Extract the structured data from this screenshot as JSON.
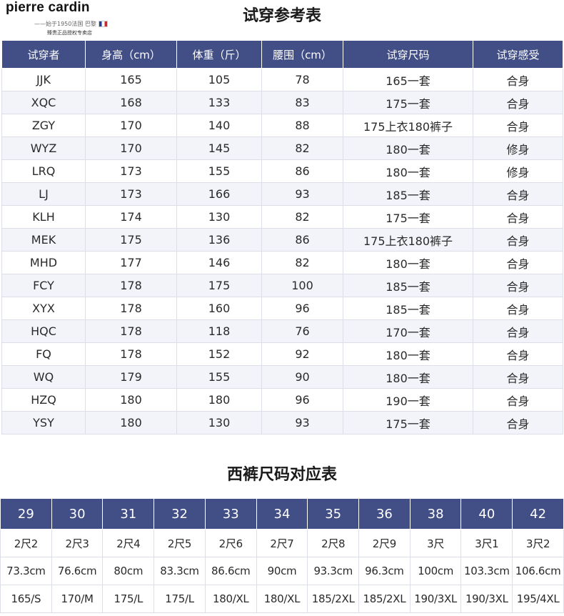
{
  "brand": {
    "name": "pierre cardin",
    "since": "——始于1950法国 巴黎",
    "store": "臻贵正品授权专卖店"
  },
  "trial_table": {
    "title": "试穿参考表",
    "headers": [
      "试穿者",
      "身高（cm）",
      "体重（斤）",
      "腰围（cm）",
      "试穿尺码",
      "试穿感受"
    ],
    "rows": [
      [
        "JJK",
        "165",
        "105",
        "78",
        "165一套",
        "合身"
      ],
      [
        "XQC",
        "168",
        "133",
        "83",
        "175一套",
        "合身"
      ],
      [
        "ZGY",
        "170",
        "140",
        "88",
        "175上衣180裤子",
        "合身"
      ],
      [
        "WYZ",
        "170",
        "145",
        "82",
        "180一套",
        "修身"
      ],
      [
        "LRQ",
        "173",
        "155",
        "86",
        "180一套",
        "修身"
      ],
      [
        "LJ",
        "173",
        "166",
        "93",
        "185一套",
        "合身"
      ],
      [
        "KLH",
        "174",
        "130",
        "82",
        "175一套",
        "合身"
      ],
      [
        "MEK",
        "175",
        "136",
        "86",
        "175上衣180裤子",
        "合身"
      ],
      [
        "MHD",
        "177",
        "146",
        "82",
        "180一套",
        "合身"
      ],
      [
        "FCY",
        "178",
        "175",
        "100",
        "185一套",
        "合身"
      ],
      [
        "XYX",
        "178",
        "160",
        "96",
        "185一套",
        "合身"
      ],
      [
        "HQC",
        "178",
        "118",
        "76",
        "170一套",
        "合身"
      ],
      [
        "FQ",
        "178",
        "152",
        "92",
        "180一套",
        "合身"
      ],
      [
        "WQ",
        "179",
        "155",
        "90",
        "180一套",
        "合身"
      ],
      [
        "HZQ",
        "180",
        "180",
        "96",
        "190一套",
        "合身"
      ],
      [
        "YSY",
        "180",
        "130",
        "93",
        "175一套",
        "合身"
      ]
    ]
  },
  "size_table": {
    "title": "西裤尺码对应表",
    "headers": [
      "29",
      "30",
      "31",
      "32",
      "33",
      "34",
      "35",
      "36",
      "38",
      "40",
      "42"
    ],
    "rows": [
      [
        "2尺2",
        "2尺3",
        "2尺4",
        "2尺5",
        "2尺6",
        "2尺7",
        "2尺8",
        "2尺9",
        "3尺",
        "3尺1",
        "3尺2"
      ],
      [
        "73.3cm",
        "76.6cm",
        "80cm",
        "83.3cm",
        "86.6cm",
        "90cm",
        "93.3cm",
        "96.3cm",
        "100cm",
        "103.3cm",
        "106.6cm"
      ],
      [
        "165/S",
        "170/M",
        "175/L",
        "175/L",
        "180/XL",
        "180/XL",
        "185/2XL",
        "185/2XL",
        "190/3XL",
        "190/3XL",
        "195/4XL"
      ]
    ]
  },
  "colors": {
    "header_bg": "#424e86",
    "header_text": "#ffffff",
    "stripe": "#f3f4f9"
  }
}
